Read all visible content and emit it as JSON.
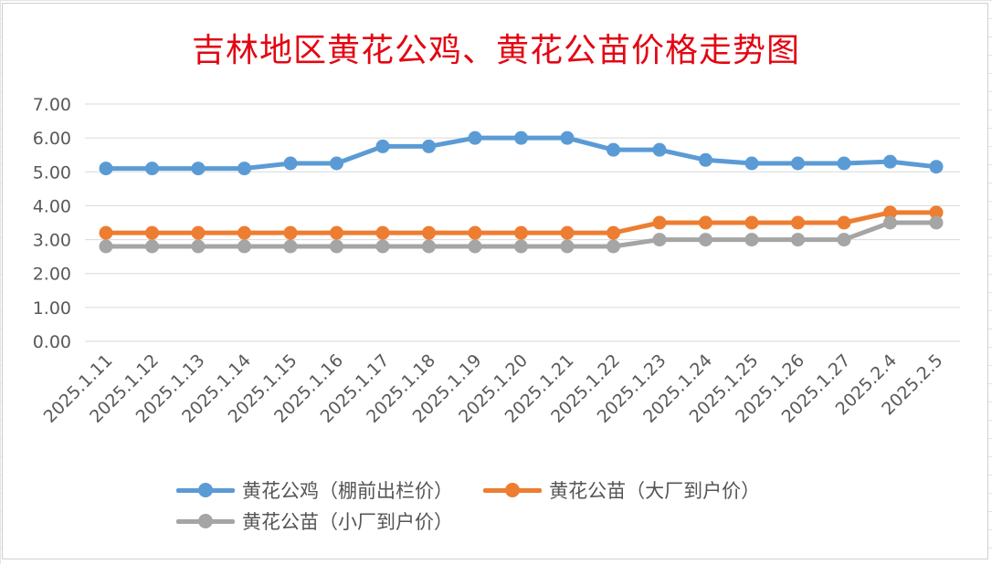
{
  "chart_data": {
    "type": "line",
    "title": "吉林地区黄花公鸡、黄花公苗价格走势图",
    "xlabel": "",
    "ylabel": "",
    "categories": [
      "2025.1.11",
      "2025.1.12",
      "2025.1.13",
      "2025.1.14",
      "2025.1.15",
      "2025.1.16",
      "2025.1.17",
      "2025.1.18",
      "2025.1.19",
      "2025.1.20",
      "2025.1.21",
      "2025.1.22",
      "2025.1.23",
      "2025.1.24",
      "2025.1.25",
      "2025.1.26",
      "2025.1.27",
      "2025.2.4",
      "2025.2.5"
    ],
    "ylim": [
      0,
      7
    ],
    "yticks": [
      "0.00",
      "1.00",
      "2.00",
      "3.00",
      "4.00",
      "5.00",
      "6.00",
      "7.00"
    ],
    "grid": true,
    "legend_position": "bottom",
    "series": [
      {
        "name": "黄花公鸡（棚前出栏价）",
        "color": "#5b9bd5",
        "values": [
          5.1,
          5.1,
          5.1,
          5.1,
          5.25,
          5.25,
          5.75,
          5.75,
          6.0,
          6.0,
          6.0,
          5.65,
          5.65,
          5.35,
          5.25,
          5.25,
          5.25,
          5.3,
          5.15
        ]
      },
      {
        "name": "黄花公苗（大厂到户价）",
        "color": "#ed7d31",
        "values": [
          3.2,
          3.2,
          3.2,
          3.2,
          3.2,
          3.2,
          3.2,
          3.2,
          3.2,
          3.2,
          3.2,
          3.2,
          3.5,
          3.5,
          3.5,
          3.5,
          3.5,
          3.8,
          3.8
        ]
      },
      {
        "name": "黄花公苗（小厂到户价）",
        "color": "#a5a5a5",
        "values": [
          2.8,
          2.8,
          2.8,
          2.8,
          2.8,
          2.8,
          2.8,
          2.8,
          2.8,
          2.8,
          2.8,
          2.8,
          3.0,
          3.0,
          3.0,
          3.0,
          3.0,
          3.5,
          3.5
        ]
      }
    ]
  }
}
